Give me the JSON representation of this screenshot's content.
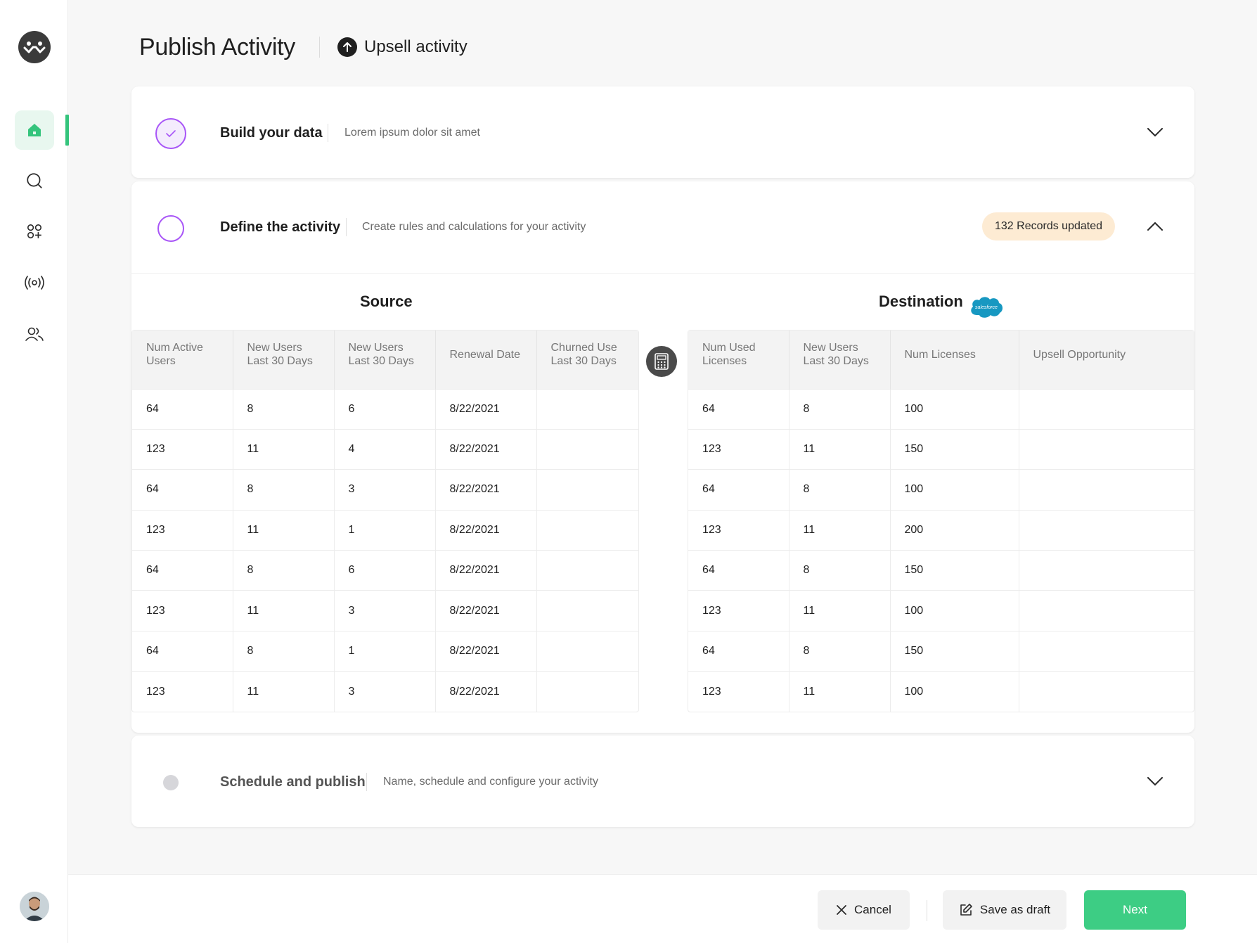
{
  "header": {
    "title": "Publish Activity",
    "activity_type": "Upsell activity"
  },
  "sidebar": {
    "items": [
      {
        "name": "home-icon",
        "active": true
      },
      {
        "name": "search-icon",
        "active": false
      },
      {
        "name": "apps-icon",
        "active": false
      },
      {
        "name": "broadcast-icon",
        "active": false
      },
      {
        "name": "users-icon",
        "active": false
      }
    ],
    "accent_color": "#34c47c"
  },
  "steps": {
    "build": {
      "title": "Build your data",
      "description": "Lorem ipsum dolor sit amet",
      "status": "complete"
    },
    "define": {
      "title": "Define the activity",
      "description": "Create rules and calculations for your activity",
      "badge": "132 Records updated",
      "status": "in-progress"
    },
    "schedule": {
      "title": "Schedule and publish",
      "description": "Name, schedule and configure your activity",
      "status": "pending"
    }
  },
  "source": {
    "title": "Source",
    "columns": [
      "Num Active Users",
      "New Users Last 30 Days",
      "New Users Last 30 Days",
      "Renewal Date",
      "Churned Use Last 30 Days"
    ],
    "rows": [
      [
        "64",
        "8",
        "6",
        "8/22/2021",
        ""
      ],
      [
        "123",
        "11",
        "4",
        "8/22/2021",
        ""
      ],
      [
        "64",
        "8",
        "3",
        "8/22/2021",
        ""
      ],
      [
        "123",
        "11",
        "1",
        "8/22/2021",
        ""
      ],
      [
        "64",
        "8",
        "6",
        "8/22/2021",
        ""
      ],
      [
        "123",
        "11",
        "3",
        "8/22/2021",
        ""
      ],
      [
        "64",
        "8",
        "1",
        "8/22/2021",
        ""
      ],
      [
        "123",
        "11",
        "3",
        "8/22/2021",
        ""
      ]
    ]
  },
  "destination": {
    "title": "Destination",
    "logo_text": "salesforce",
    "columns": [
      "Num Used Licenses",
      "New Users Last 30 Days",
      "Num Licenses",
      "Upsell Opportunity"
    ],
    "rows": [
      [
        "64",
        "8",
        "100",
        ""
      ],
      [
        "123",
        "11",
        "150",
        ""
      ],
      [
        "64",
        "8",
        "100",
        ""
      ],
      [
        "123",
        "11",
        "200",
        ""
      ],
      [
        "64",
        "8",
        "150",
        ""
      ],
      [
        "123",
        "11",
        "100",
        ""
      ],
      [
        "64",
        "8",
        "150",
        ""
      ],
      [
        "123",
        "11",
        "100",
        ""
      ]
    ]
  },
  "footer": {
    "cancel_label": "Cancel",
    "draft_label": "Save as draft",
    "next_label": "Next"
  },
  "colors": {
    "primary": "#3dcd84",
    "step_accent": "#a855f7",
    "badge_bg": "#fdebd3",
    "salesforce": "#1798c1"
  }
}
